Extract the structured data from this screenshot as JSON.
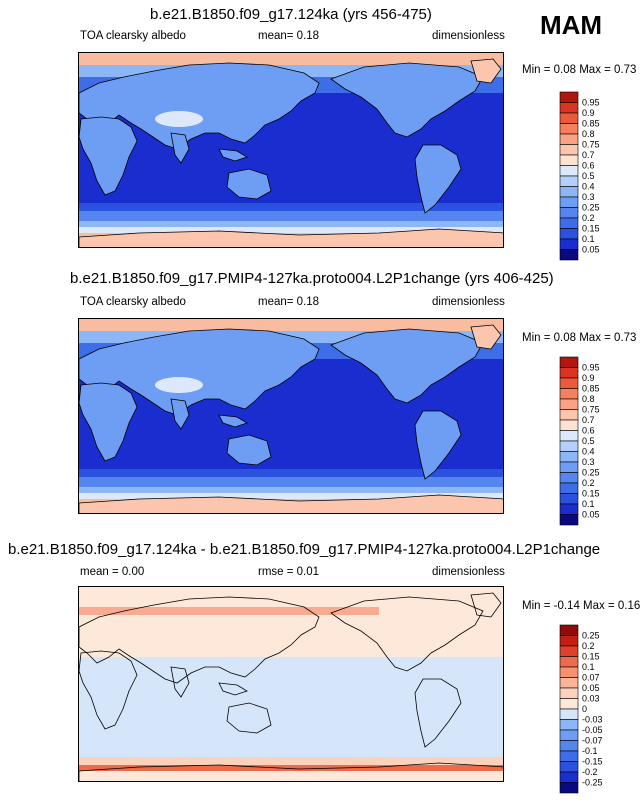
{
  "season": "MAM",
  "panels": [
    {
      "title": "b.e21.B1850.f09_g17.124ka (yrs 456-475)",
      "left_label": "TOA clearsky albedo",
      "center_label": "mean=  0.18",
      "right_label": "dimensionless",
      "minmax": "Min =  0.08 Max =  0.73",
      "kind": "abs"
    },
    {
      "title": "b.e21.B1850.f09_g17.PMIP4-127ka.proto004.L2P1change (yrs 406-425)",
      "left_label": "TOA clearsky albedo",
      "center_label": "mean=  0.18",
      "right_label": "dimensionless",
      "minmax": "Min =  0.08 Max =  0.73",
      "kind": "abs"
    },
    {
      "title": "b.e21.B1850.f09_g17.124ka - b.e21.B1850.f09_g17.PMIP4-127ka.proto004.L2P1change",
      "left_label": "mean =  0.00",
      "center_label": "rmse =  0.01",
      "right_label": "dimensionless",
      "minmax": "Min = -0.14 Max =  0.16",
      "kind": "diff"
    }
  ],
  "chart_data": [
    {
      "type": "heatmap",
      "title": "b.e21.B1850.f09_g17.124ka (yrs 456-475)",
      "variable": "TOA clearsky albedo",
      "units": "dimensionless",
      "mean": 0.18,
      "min": 0.08,
      "max": 0.73,
      "colorbar_levels": [
        0.05,
        0.1,
        0.15,
        0.2,
        0.25,
        0.3,
        0.4,
        0.5,
        0.6,
        0.7,
        0.75,
        0.8,
        0.85,
        0.9,
        0.95
      ],
      "colorbar_colors": [
        "#0a0a80",
        "#1a2ecf",
        "#2a52df",
        "#3e6de8",
        "#5486ee",
        "#6e9ef3",
        "#8db6f7",
        "#b4cff9",
        "#dde9fb",
        "#fde2d2",
        "#fcc5ad",
        "#f9a284",
        "#f4805e",
        "#ea5a3b",
        "#d93522",
        "#b0170f"
      ]
    },
    {
      "type": "heatmap",
      "title": "b.e21.B1850.f09_g17.PMIP4-127ka.proto004.L2P1change (yrs 406-425)",
      "variable": "TOA clearsky albedo",
      "units": "dimensionless",
      "mean": 0.18,
      "min": 0.08,
      "max": 0.73,
      "colorbar_levels": [
        0.05,
        0.1,
        0.15,
        0.2,
        0.25,
        0.3,
        0.4,
        0.5,
        0.6,
        0.7,
        0.75,
        0.8,
        0.85,
        0.9,
        0.95
      ],
      "colorbar_colors": [
        "#0a0a80",
        "#1a2ecf",
        "#2a52df",
        "#3e6de8",
        "#5486ee",
        "#6e9ef3",
        "#8db6f7",
        "#b4cff9",
        "#dde9fb",
        "#fde2d2",
        "#fcc5ad",
        "#f9a284",
        "#f4805e",
        "#ea5a3b",
        "#d93522",
        "#b0170f"
      ]
    },
    {
      "type": "heatmap",
      "title": "b.e21.B1850.f09_g17.124ka - b.e21.B1850.f09_g17.PMIP4-127ka.proto004.L2P1change",
      "units": "dimensionless",
      "mean": 0.0,
      "rmse": 0.01,
      "min": -0.14,
      "max": 0.16,
      "colorbar_levels": [
        -0.25,
        -0.2,
        -0.15,
        -0.1,
        -0.07,
        -0.05,
        -0.03,
        0,
        0.03,
        0.05,
        0.07,
        0.1,
        0.15,
        0.2,
        0.25
      ],
      "colorbar_colors": [
        "#0a0a80",
        "#1a2ecf",
        "#2a52df",
        "#3e6de8",
        "#5486ee",
        "#6e9ef3",
        "#8db6f7",
        "#d6e6fa",
        "#fde8da",
        "#fcd2bd",
        "#f9b596",
        "#f59270",
        "#ec6b49",
        "#de4129",
        "#c21f14",
        "#8f0c08"
      ]
    }
  ]
}
